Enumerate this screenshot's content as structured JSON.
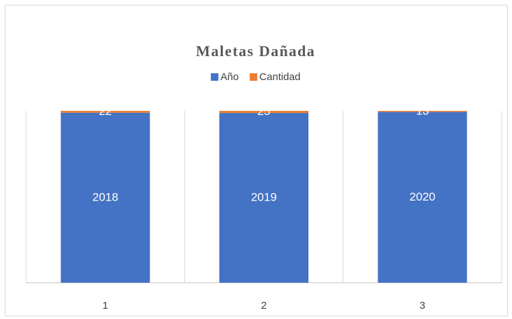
{
  "chart_data": {
    "type": "bar",
    "stacking": "percent",
    "title": "Maletas Dañada",
    "categories": [
      "1",
      "2",
      "3"
    ],
    "series": [
      {
        "name": "Año",
        "color": "#4472c4",
        "values": [
          2018,
          2019,
          2020
        ]
      },
      {
        "name": "Cantidad",
        "color": "#ed7d31",
        "values": [
          22,
          25,
          13
        ]
      }
    ],
    "legend": "top",
    "data_labels": true
  }
}
